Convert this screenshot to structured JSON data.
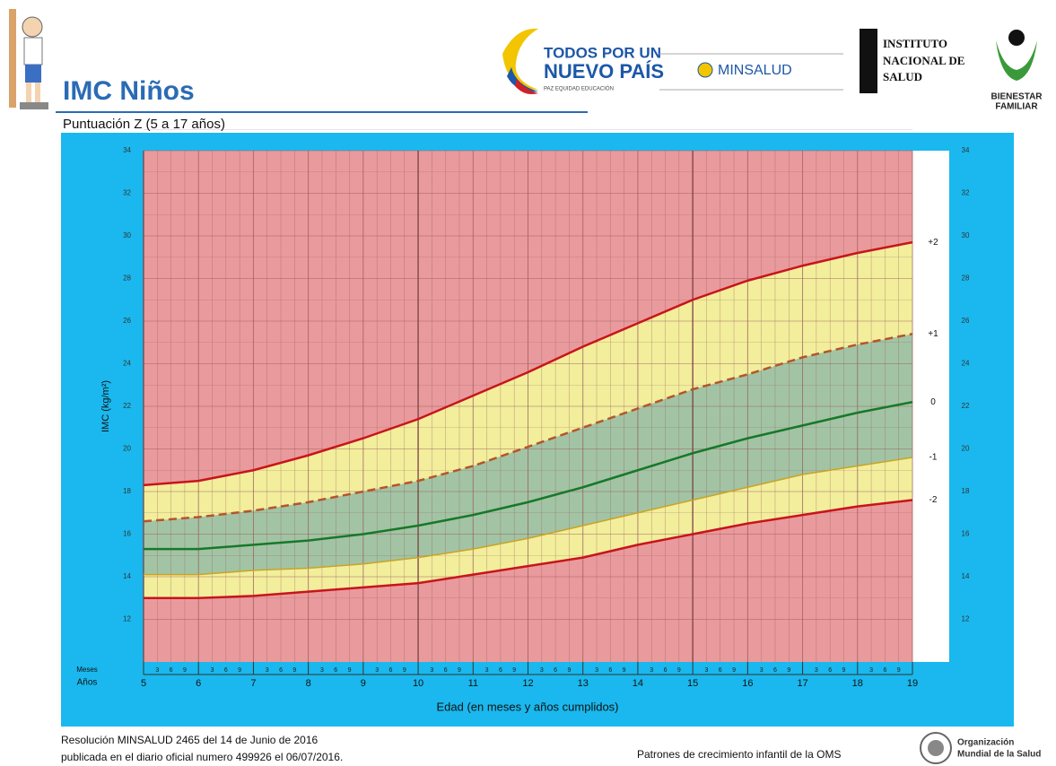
{
  "header": {
    "title": "IMC Niños",
    "subtitle": "Puntuación Z (5 a 17 años)",
    "logos": {
      "gov_line1": "TODOS POR UN",
      "gov_line2": "NUEVO PAÍS",
      "gov_line3": "PAZ  EQUIDAD  EDUCACIÓN",
      "minsalud": "MINSALUD",
      "ins_line1": "INSTITUTO",
      "ins_line2": "NACIONAL DE",
      "ins_line3": "SALUD",
      "icbf_line1": "BIENESTAR",
      "icbf_line2": "FAMILIAR"
    }
  },
  "chart_data": {
    "type": "line",
    "y_label": "IMC (kg/m²)",
    "x_label": "Edad (en meses y años cumplidos)",
    "months_label": "Meses",
    "years_label": "Años",
    "x": [
      5,
      6,
      7,
      8,
      9,
      10,
      11,
      12,
      13,
      14,
      15,
      16,
      17,
      18,
      19
    ],
    "series": [
      {
        "name": "+2",
        "color": "#c8141c",
        "dashed": false,
        "values": [
          18.3,
          18.5,
          19.0,
          19.7,
          20.5,
          21.4,
          22.5,
          23.6,
          24.8,
          25.9,
          27.0,
          27.9,
          28.6,
          29.2,
          29.7
        ]
      },
      {
        "name": "+1",
        "color": "#b4552a",
        "dashed": true,
        "values": [
          16.6,
          16.8,
          17.1,
          17.5,
          18.0,
          18.5,
          19.2,
          20.1,
          21.0,
          21.9,
          22.8,
          23.5,
          24.3,
          24.9,
          25.4
        ]
      },
      {
        "name": "0",
        "color": "#17782a",
        "dashed": false,
        "values": [
          15.3,
          15.3,
          15.5,
          15.7,
          16.0,
          16.4,
          16.9,
          17.5,
          18.2,
          19.0,
          19.8,
          20.5,
          21.1,
          21.7,
          22.2
        ]
      },
      {
        "name": "-1",
        "color": "#c9a424",
        "dashed": false,
        "values": [
          14.1,
          14.1,
          14.3,
          14.4,
          14.6,
          14.9,
          15.3,
          15.8,
          16.4,
          17.0,
          17.6,
          18.2,
          18.8,
          19.2,
          19.6
        ]
      },
      {
        "name": "-2",
        "color": "#c8141c",
        "dashed": false,
        "values": [
          13.0,
          13.0,
          13.1,
          13.3,
          13.5,
          13.7,
          14.1,
          14.5,
          14.9,
          15.5,
          16.0,
          16.5,
          16.9,
          17.3,
          17.6
        ]
      }
    ],
    "band_colors": [
      "#e99a9c",
      "#f2ee9c",
      "#a2c4a4"
    ],
    "xlim": [
      5,
      19
    ],
    "xticks": [
      5,
      6,
      7,
      8,
      9,
      10,
      11,
      12,
      13,
      14,
      15,
      16,
      17,
      18,
      19
    ],
    "month_ticks": [
      3,
      6,
      9
    ],
    "ylim": [
      10,
      34
    ],
    "yticks": [
      12,
      14,
      16,
      18,
      20,
      22,
      24,
      26,
      28,
      30,
      32,
      34
    ],
    "grid": true
  },
  "footer": {
    "line1": "Resolución MINSALUD 2465 del 14 de Junio de 2016",
    "line2": "publicada en el diario oficial numero 499926 el 06/07/2016.",
    "source": "Patrones de crecimiento infantil de la OMS",
    "who_line1": "Organización",
    "who_line2": "Mundial de la Salud"
  }
}
